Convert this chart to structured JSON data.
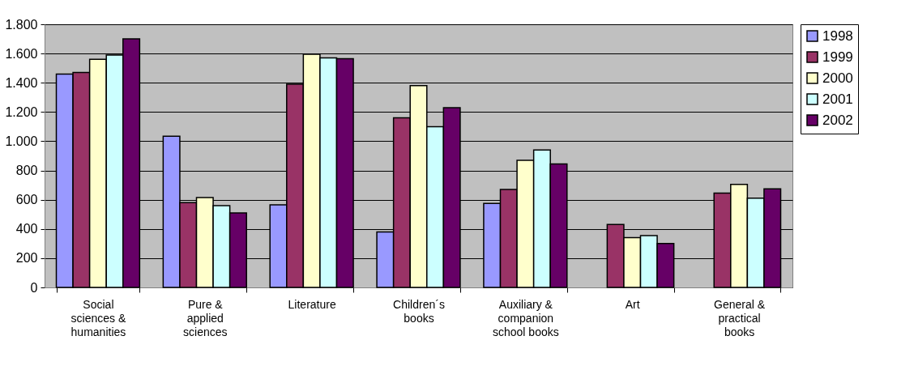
{
  "chart_data": {
    "type": "bar",
    "categories": [
      "Social sciences & humanities",
      "Pure & applied sciences",
      "Literature",
      "Children´s books",
      "Auxiliary & companion school books",
      "Art",
      "General & practical books"
    ],
    "series": [
      {
        "name": "1998",
        "color": "#9999ff",
        "values": [
          1460,
          1035,
          565,
          380,
          575,
          null,
          null
        ]
      },
      {
        "name": "1999",
        "color": "#993366",
        "values": [
          1470,
          580,
          1390,
          1160,
          670,
          430,
          645
        ]
      },
      {
        "name": "2000",
        "color": "#ffffcc",
        "values": [
          1560,
          615,
          1595,
          1380,
          870,
          340,
          705
        ]
      },
      {
        "name": "2001",
        "color": "#ccffff",
        "values": [
          1590,
          560,
          1570,
          1100,
          940,
          355,
          610
        ]
      },
      {
        "name": "2002",
        "color": "#660066",
        "values": [
          1700,
          510,
          1565,
          1230,
          845,
          300,
          675
        ]
      }
    ],
    "ylim": [
      0,
      1800
    ],
    "yticks": [
      0,
      200,
      400,
      600,
      800,
      {
        "value": 1000,
        "label": "1.000"
      },
      {
        "value": 1200,
        "label": "1.200"
      },
      {
        "value": 1400,
        "label": "1.400"
      },
      {
        "value": 1600,
        "label": "1.600"
      },
      {
        "value": 1800,
        "label": "1.800"
      }
    ],
    "grid": "y",
    "legend": "top right"
  }
}
